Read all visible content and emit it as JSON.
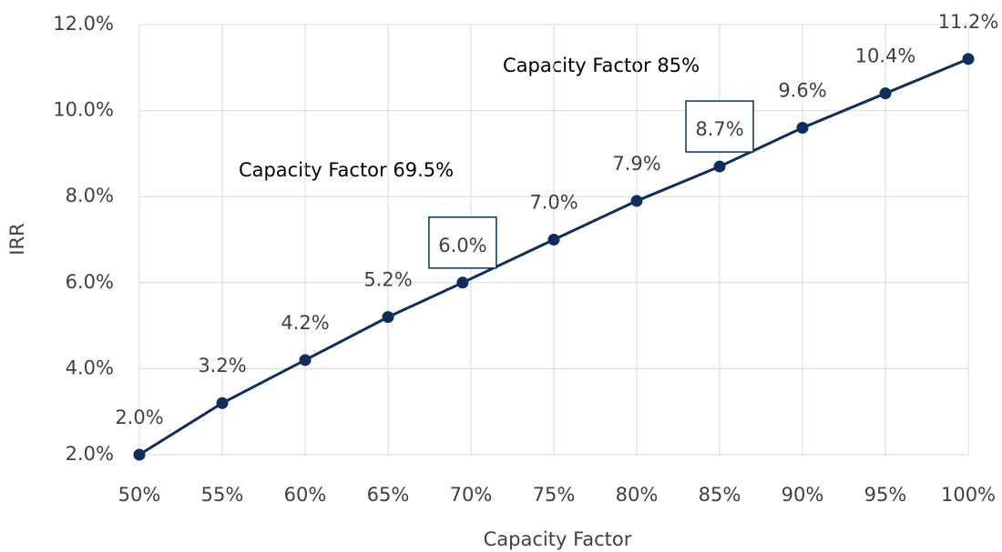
{
  "chart_data": {
    "type": "line",
    "x_label": "Capacity Factor",
    "y_label": "IRR",
    "x": [
      50,
      55,
      60,
      65,
      69.5,
      75,
      80,
      85,
      90,
      95,
      100
    ],
    "series": [
      {
        "color": "#0f2e5c",
        "values": [
          2.0,
          3.2,
          4.2,
          5.2,
          6.0,
          7.0,
          7.9,
          8.7,
          9.6,
          10.4,
          11.2
        ],
        "value_labels": [
          "2.0%",
          "3.2%",
          "4.2%",
          "5.2%",
          "6.0%",
          "7.0%",
          "7.9%",
          "8.7%",
          "9.6%",
          "10.4%",
          "11.2%"
        ]
      }
    ],
    "boxed_labels": [
      4,
      7
    ],
    "annotations": [
      "Capacity Factor 69.5%",
      "Capacity Factor 85%"
    ],
    "xlim": [
      50,
      100
    ],
    "xticks": [
      {
        "value": 50,
        "label": "50%"
      },
      {
        "value": 55,
        "label": "55%"
      },
      {
        "value": 60,
        "label": "60%"
      },
      {
        "value": 65,
        "label": "65%"
      },
      {
        "value": 70,
        "label": "70%"
      },
      {
        "value": 75,
        "label": "75%"
      },
      {
        "value": 80,
        "label": "80%"
      },
      {
        "value": 85,
        "label": "85%"
      },
      {
        "value": 90,
        "label": "90%"
      },
      {
        "value": 95,
        "label": "95%"
      },
      {
        "value": 100,
        "label": "100%"
      }
    ],
    "ylim": [
      2,
      12
    ],
    "yticks": [
      {
        "value": 2,
        "label": "2.0%"
      },
      {
        "value": 4,
        "label": "4.0%"
      },
      {
        "value": 6,
        "label": "6.0%"
      },
      {
        "value": 8,
        "label": "8.0%"
      },
      {
        "value": 10,
        "label": "10.0%"
      },
      {
        "value": 12,
        "label": "12.0%"
      }
    ],
    "grid": true
  }
}
